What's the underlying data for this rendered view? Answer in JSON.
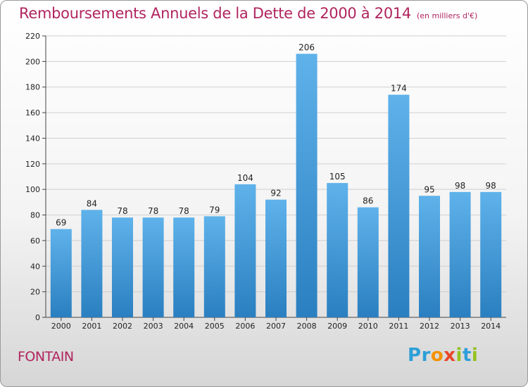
{
  "chart_data": {
    "type": "bar",
    "title": "Remboursements Annuels de la Dette de 2000 à 2014",
    "subtitle": "(en milliers d'€)",
    "categories": [
      "2000",
      "2001",
      "2002",
      "2003",
      "2004",
      "2005",
      "2006",
      "2007",
      "2008",
      "2009",
      "2010",
      "2011",
      "2012",
      "2013",
      "2014"
    ],
    "values": [
      69,
      84,
      78,
      78,
      78,
      79,
      104,
      92,
      206,
      105,
      86,
      174,
      95,
      98,
      98
    ],
    "ylim": [
      0,
      220
    ],
    "yticks": [
      0,
      20,
      40,
      60,
      80,
      100,
      120,
      140,
      160,
      180,
      200,
      220
    ],
    "grid": true,
    "xlabel": "",
    "ylabel": ""
  },
  "footer": {
    "city": "FONTAIN",
    "logo": "Proxiti"
  },
  "colors": {
    "title": "#b0245f",
    "bar_top": "#5fb2ea",
    "bar_bottom": "#2a7fc0",
    "grid": "#cfcfcf"
  }
}
